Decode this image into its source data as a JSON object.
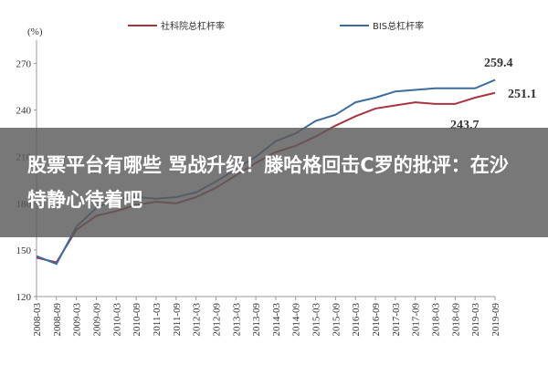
{
  "headline": "股票平台有哪些 骂战升级！滕哈格回击C罗的批评：在沙特静心待着吧",
  "chart_data": {
    "type": "line",
    "y_label": "(%)",
    "categories": [
      "2008-03",
      "2008-09",
      "2009-03",
      "2009-09",
      "2010-03",
      "2010-09",
      "2011-03",
      "2011-09",
      "2012-03",
      "2012-09",
      "2013-03",
      "2013-09",
      "2014-03",
      "2014-09",
      "2015-03",
      "2015-09",
      "2016-03",
      "2016-09",
      "2017-03",
      "2017-09",
      "2018-03",
      "2018-09",
      "2019-03",
      "2019-09"
    ],
    "series": [
      {
        "name": "社科院总杠杆率",
        "color": "#a8343f",
        "values": [
          145,
          142,
          163,
          172,
          175,
          179,
          181,
          180,
          184,
          190,
          198,
          206,
          213,
          217,
          223,
          230,
          236,
          241,
          243,
          245,
          244,
          244,
          248,
          251.1
        ]
      },
      {
        "name": "BIS总杠杆率",
        "color": "#3c6c9e",
        "values": [
          146,
          141,
          165,
          177,
          183,
          184,
          183,
          184,
          187,
          194,
          202,
          210,
          220,
          225,
          233,
          237,
          245,
          248,
          252,
          253,
          254,
          254,
          254,
          259.4
        ]
      }
    ],
    "annotations": [
      "259.4",
      "251.1",
      "243.7"
    ],
    "ylim": [
      120,
      285
    ],
    "yticks": [
      120,
      150,
      180,
      210,
      240,
      270
    ]
  }
}
